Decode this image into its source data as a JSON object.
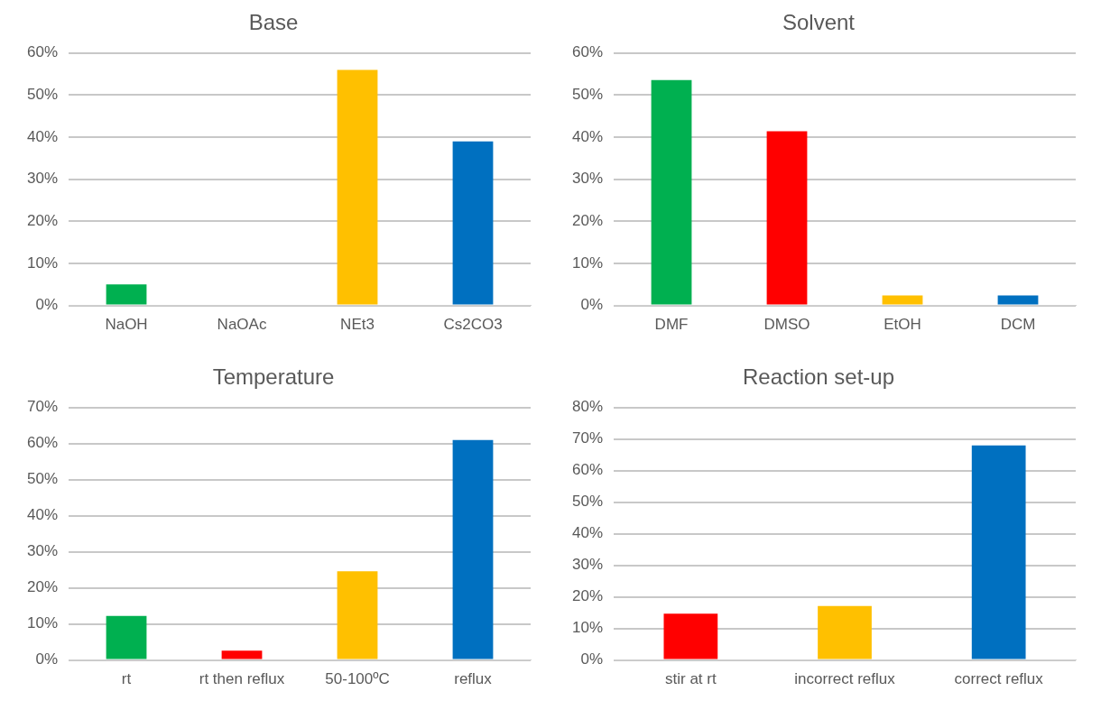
{
  "chart_data": [
    {
      "type": "bar",
      "title": "Base",
      "categories": [
        "NaOH",
        "NaOAc",
        "NEt3",
        "Cs2CO3"
      ],
      "values": [
        5,
        0,
        56,
        39
      ],
      "colors": [
        "#00b050",
        "#ff0000",
        "#ffc000",
        "#0070c0"
      ],
      "ylim": [
        0,
        60
      ],
      "yticks": [
        {
          "value": 0,
          "label": "0%"
        },
        {
          "value": 10,
          "label": "10%"
        },
        {
          "value": 20,
          "label": "20%"
        },
        {
          "value": 30,
          "label": "30%"
        },
        {
          "value": 40,
          "label": "40%"
        },
        {
          "value": 50,
          "label": "50%"
        },
        {
          "value": 60,
          "label": "60%"
        }
      ],
      "grid": "y",
      "legend": false
    },
    {
      "type": "bar",
      "title": "Solvent",
      "categories": [
        "DMF",
        "DMSO",
        "EtOH",
        "DCM"
      ],
      "values": [
        53.6,
        41.4,
        2.4,
        2.4
      ],
      "colors": [
        "#00b050",
        "#ff0000",
        "#ffc000",
        "#0070c0"
      ],
      "ylim": [
        0,
        60
      ],
      "yticks": [
        {
          "value": 0,
          "label": "0%"
        },
        {
          "value": 10,
          "label": "10%"
        },
        {
          "value": 20,
          "label": "20%"
        },
        {
          "value": 30,
          "label": "30%"
        },
        {
          "value": 40,
          "label": "40%"
        },
        {
          "value": 50,
          "label": "50%"
        },
        {
          "value": 60,
          "label": "60%"
        }
      ],
      "grid": "y",
      "legend": false
    },
    {
      "type": "bar",
      "title": "Temperature",
      "categories": [
        "rt",
        "rt then reflux",
        "50-100ºC",
        "reflux"
      ],
      "values": [
        12.2,
        2.6,
        24.6,
        61
      ],
      "colors": [
        "#00b050",
        "#ff0000",
        "#ffc000",
        "#0070c0"
      ],
      "ylim": [
        0,
        70
      ],
      "yticks": [
        {
          "value": 0,
          "label": "0%"
        },
        {
          "value": 10,
          "label": "10%"
        },
        {
          "value": 20,
          "label": "20%"
        },
        {
          "value": 30,
          "label": "30%"
        },
        {
          "value": 40,
          "label": "40%"
        },
        {
          "value": 50,
          "label": "50%"
        },
        {
          "value": 60,
          "label": "60%"
        },
        {
          "value": 70,
          "label": "70%"
        }
      ],
      "grid": "y",
      "legend": false
    },
    {
      "type": "bar",
      "title": "Reaction set-up",
      "categories": [
        "stir at rt",
        "incorrect reflux",
        "correct reflux"
      ],
      "values": [
        14.7,
        17.1,
        68
      ],
      "colors": [
        "#ff0000",
        "#ffc000",
        "#0070c0"
      ],
      "ylim": [
        0,
        80
      ],
      "yticks": [
        {
          "value": 0,
          "label": "0%"
        },
        {
          "value": 10,
          "label": "10%"
        },
        {
          "value": 20,
          "label": "20%"
        },
        {
          "value": 30,
          "label": "30%"
        },
        {
          "value": 40,
          "label": "40%"
        },
        {
          "value": 50,
          "label": "50%"
        },
        {
          "value": 60,
          "label": "60%"
        },
        {
          "value": 70,
          "label": "70%"
        },
        {
          "value": 80,
          "label": "80%"
        }
      ],
      "grid": "y",
      "legend": false
    }
  ]
}
